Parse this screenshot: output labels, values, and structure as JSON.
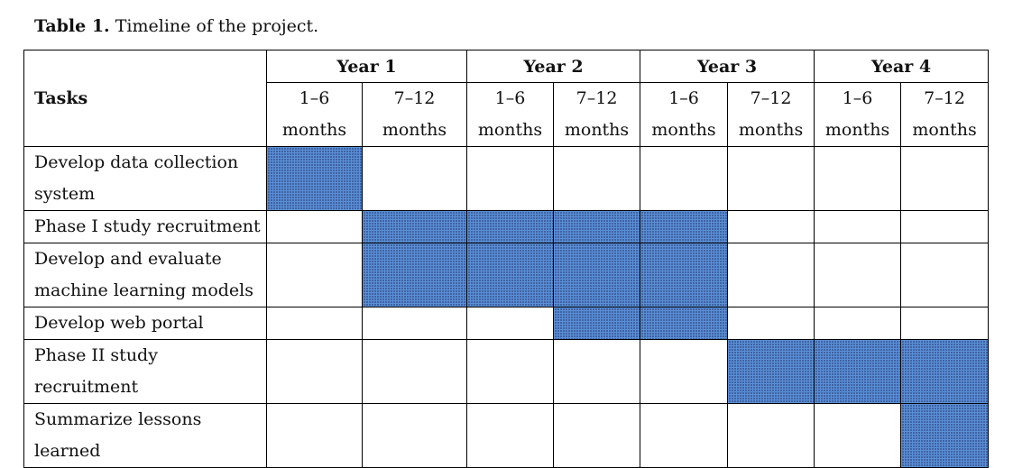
{
  "caption": {
    "label": "Table 1.",
    "text": " Timeline of the project."
  },
  "table": {
    "tasks_header": "Tasks",
    "years": [
      "Year 1",
      "Year 2",
      "Year 3",
      "Year 4"
    ],
    "periods": [
      {
        "range": "1–6",
        "unit": "months"
      },
      {
        "range": "7–12",
        "unit": "months"
      },
      {
        "range": "1–6",
        "unit": "months"
      },
      {
        "range": "7–12",
        "unit": "months"
      },
      {
        "range": "1–6",
        "unit": "months"
      },
      {
        "range": "7–12",
        "unit": "months"
      },
      {
        "range": "1–6",
        "unit": "months"
      },
      {
        "range": "7–12",
        "unit": "months"
      }
    ],
    "rows": [
      {
        "lines": [
          "Develop data collection",
          "system"
        ],
        "active": [
          1,
          0,
          0,
          0,
          0,
          0,
          0,
          0
        ]
      },
      {
        "lines": [
          "Phase I study recruitment"
        ],
        "active": [
          0,
          1,
          1,
          1,
          1,
          0,
          0,
          0
        ]
      },
      {
        "lines": [
          "Develop and evaluate",
          "machine learning models"
        ],
        "active": [
          0,
          1,
          1,
          1,
          1,
          0,
          0,
          0
        ]
      },
      {
        "lines": [
          "Develop web portal"
        ],
        "active": [
          0,
          0,
          0,
          1,
          1,
          0,
          0,
          0
        ]
      },
      {
        "lines": [
          "Phase II study recruitment"
        ],
        "active": [
          0,
          0,
          0,
          0,
          0,
          1,
          1,
          1
        ]
      },
      {
        "lines": [
          "Summarize lessons",
          "learned"
        ],
        "active": [
          0,
          0,
          0,
          0,
          0,
          0,
          0,
          1
        ]
      }
    ],
    "fill_color": "#5b8fd6"
  }
}
